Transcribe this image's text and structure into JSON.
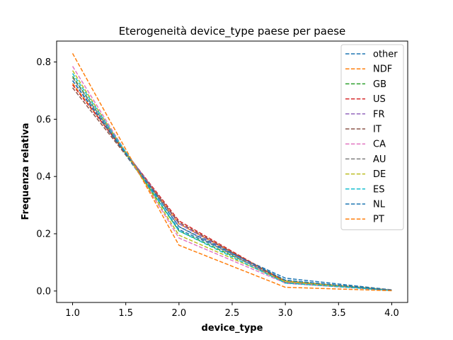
{
  "chart_data": {
    "type": "line",
    "title": "Eterogeneità device_type paese per paese",
    "xlabel": "device_type",
    "ylabel": "Frequenza relativa",
    "xlim": [
      0.85,
      4.15
    ],
    "ylim": [
      -0.04,
      0.873
    ],
    "xticks": [
      1.0,
      1.5,
      2.0,
      2.5,
      3.0,
      3.5,
      4.0
    ],
    "xtick_labels": [
      "1.0",
      "1.5",
      "2.0",
      "2.5",
      "3.0",
      "3.5",
      "4.0"
    ],
    "yticks": [
      0.0,
      0.2,
      0.4,
      0.6,
      0.8
    ],
    "ytick_labels": [
      "0.0",
      "0.2",
      "0.4",
      "0.6",
      "0.8"
    ],
    "grid": false,
    "line_style": "dashed",
    "legend_position": "top-right",
    "x": [
      1,
      2,
      3,
      4
    ],
    "series": [
      {
        "name": "other",
        "color": "#1f77b4",
        "values": [
          0.735,
          0.215,
          0.045,
          0.004
        ]
      },
      {
        "name": "NDF",
        "color": "#ff7f0e",
        "values": [
          0.725,
          0.235,
          0.035,
          0.003
        ]
      },
      {
        "name": "GB",
        "color": "#2ca02c",
        "values": [
          0.75,
          0.21,
          0.037,
          0.003
        ]
      },
      {
        "name": "US",
        "color": "#d62728",
        "values": [
          0.72,
          0.245,
          0.032,
          0.003
        ]
      },
      {
        "name": "FR",
        "color": "#9467bd",
        "values": [
          0.735,
          0.235,
          0.027,
          0.003
        ]
      },
      {
        "name": "IT",
        "color": "#8c564b",
        "values": [
          0.71,
          0.24,
          0.03,
          0.003
        ]
      },
      {
        "name": "CA",
        "color": "#e377c2",
        "values": [
          0.785,
          0.185,
          0.028,
          0.002
        ]
      },
      {
        "name": "AU",
        "color": "#7f7f7f",
        "values": [
          0.745,
          0.225,
          0.028,
          0.002
        ]
      },
      {
        "name": "DE",
        "color": "#bcbd22",
        "values": [
          0.77,
          0.195,
          0.033,
          0.002
        ]
      },
      {
        "name": "ES",
        "color": "#17becf",
        "values": [
          0.76,
          0.21,
          0.028,
          0.002
        ]
      },
      {
        "name": "NL",
        "color": "#1f77b4",
        "values": [
          0.735,
          0.225,
          0.038,
          0.002
        ]
      },
      {
        "name": "PT",
        "color": "#ff7f0e",
        "values": [
          0.83,
          0.16,
          0.013,
          0.001
        ]
      }
    ]
  }
}
